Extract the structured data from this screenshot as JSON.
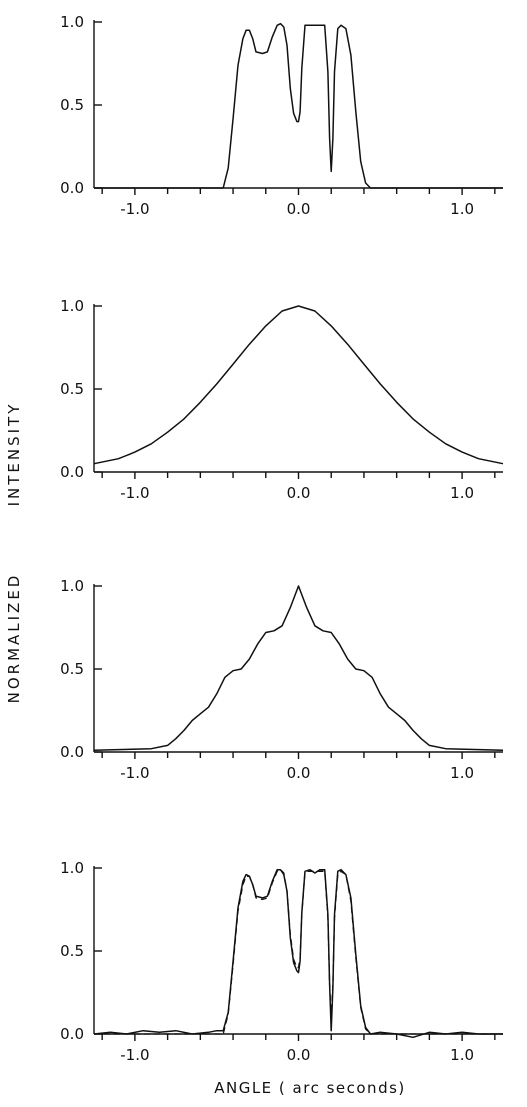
{
  "figure": {
    "ylabel_words": [
      "NORMALIZED",
      "INTENSITY"
    ],
    "xlabel": "ANGLE ( arc seconds)"
  },
  "chart_data": [
    {
      "type": "line",
      "xlim": [
        -1.25,
        1.25
      ],
      "ylim": [
        0.0,
        1.0
      ],
      "x_ticks": [
        -1.0,
        0.0,
        1.0
      ],
      "x_tick_labels": [
        "-1.0",
        "0.0",
        "1.0"
      ],
      "y_ticks": [
        0.0,
        0.5,
        1.0
      ],
      "y_tick_labels": [
        "0.0",
        "0.5",
        "1.0"
      ],
      "series": [
        {
          "style": "solid",
          "x": [
            -1.25,
            -0.46,
            -0.43,
            -0.4,
            -0.37,
            -0.34,
            -0.32,
            -0.3,
            -0.28,
            -0.26,
            -0.22,
            -0.19,
            -0.16,
            -0.13,
            -0.11,
            -0.09,
            -0.07,
            -0.05,
            -0.03,
            -0.01,
            0.0,
            0.01,
            0.02,
            0.04,
            0.07,
            0.1,
            0.13,
            0.16,
            0.18,
            0.19,
            0.2,
            0.21,
            0.22,
            0.24,
            0.26,
            0.29,
            0.32,
            0.35,
            0.38,
            0.41,
            0.44,
            0.46,
            1.25
          ],
          "y": [
            0.0,
            0.0,
            0.12,
            0.42,
            0.74,
            0.9,
            0.95,
            0.95,
            0.9,
            0.82,
            0.81,
            0.82,
            0.91,
            0.98,
            0.99,
            0.97,
            0.86,
            0.6,
            0.45,
            0.4,
            0.4,
            0.46,
            0.72,
            0.98,
            0.98,
            0.98,
            0.98,
            0.98,
            0.7,
            0.3,
            0.1,
            0.3,
            0.7,
            0.96,
            0.98,
            0.96,
            0.8,
            0.46,
            0.16,
            0.03,
            0.0,
            0.0,
            0.0
          ]
        }
      ]
    },
    {
      "type": "line",
      "xlim": [
        -1.25,
        1.25
      ],
      "ylim": [
        0.0,
        1.0
      ],
      "x_ticks": [
        -1.0,
        0.0,
        1.0
      ],
      "x_tick_labels": [
        "-1.0",
        "0.0",
        "1.0"
      ],
      "y_ticks": [
        0.0,
        0.5,
        1.0
      ],
      "y_tick_labels": [
        "0.0",
        "0.5",
        "1.0"
      ],
      "series": [
        {
          "style": "solid",
          "x": [
            -1.25,
            -1.1,
            -1.0,
            -0.9,
            -0.8,
            -0.7,
            -0.6,
            -0.5,
            -0.4,
            -0.3,
            -0.2,
            -0.1,
            0.0,
            0.1,
            0.2,
            0.3,
            0.4,
            0.5,
            0.6,
            0.7,
            0.8,
            0.9,
            1.0,
            1.1,
            1.25
          ],
          "y": [
            0.05,
            0.08,
            0.12,
            0.17,
            0.24,
            0.32,
            0.42,
            0.53,
            0.65,
            0.77,
            0.88,
            0.97,
            1.0,
            0.97,
            0.88,
            0.77,
            0.65,
            0.53,
            0.42,
            0.32,
            0.24,
            0.17,
            0.12,
            0.08,
            0.05
          ]
        }
      ]
    },
    {
      "type": "line",
      "xlim": [
        -1.25,
        1.25
      ],
      "ylim": [
        0.0,
        1.0
      ],
      "x_ticks": [
        -1.0,
        0.0,
        1.0
      ],
      "x_tick_labels": [
        "-1.0",
        "0.0",
        "1.0"
      ],
      "y_ticks": [
        0.0,
        0.5,
        1.0
      ],
      "y_tick_labels": [
        "0.0",
        "0.5",
        "1.0"
      ],
      "series": [
        {
          "style": "solid",
          "x": [
            -1.25,
            -0.9,
            -0.8,
            -0.75,
            -0.7,
            -0.65,
            -0.6,
            -0.55,
            -0.5,
            -0.45,
            -0.4,
            -0.35,
            -0.3,
            -0.25,
            -0.2,
            -0.15,
            -0.1,
            -0.05,
            0.0,
            0.05,
            0.1,
            0.15,
            0.2,
            0.25,
            0.3,
            0.35,
            0.4,
            0.45,
            0.5,
            0.55,
            0.6,
            0.65,
            0.7,
            0.75,
            0.8,
            0.9,
            1.25
          ],
          "y": [
            0.01,
            0.02,
            0.04,
            0.08,
            0.13,
            0.19,
            0.23,
            0.27,
            0.35,
            0.45,
            0.49,
            0.5,
            0.56,
            0.65,
            0.72,
            0.73,
            0.76,
            0.87,
            1.0,
            0.87,
            0.76,
            0.73,
            0.72,
            0.65,
            0.56,
            0.5,
            0.49,
            0.45,
            0.35,
            0.27,
            0.23,
            0.19,
            0.13,
            0.08,
            0.04,
            0.02,
            0.01
          ]
        }
      ]
    },
    {
      "type": "line",
      "xlim": [
        -1.25,
        1.25
      ],
      "ylim": [
        0.0,
        1.0
      ],
      "x_ticks": [
        -1.0,
        0.0,
        1.0
      ],
      "x_tick_labels": [
        "-1.0",
        "0.0",
        "1.0"
      ],
      "y_ticks": [
        0.0,
        0.5,
        1.0
      ],
      "y_tick_labels": [
        "0.0",
        "0.5",
        "1.0"
      ],
      "series": [
        {
          "style": "solid",
          "x": [
            -1.25,
            -1.15,
            -1.05,
            -0.95,
            -0.85,
            -0.75,
            -0.65,
            -0.55,
            -0.5,
            -0.46,
            -0.43,
            -0.4,
            -0.37,
            -0.34,
            -0.32,
            -0.3,
            -0.28,
            -0.26,
            -0.22,
            -0.19,
            -0.16,
            -0.13,
            -0.11,
            -0.09,
            -0.07,
            -0.05,
            -0.03,
            -0.01,
            0.0,
            0.01,
            0.02,
            0.04,
            0.07,
            0.1,
            0.13,
            0.16,
            0.18,
            0.19,
            0.2,
            0.21,
            0.22,
            0.24,
            0.26,
            0.29,
            0.32,
            0.35,
            0.38,
            0.41,
            0.44,
            0.5,
            0.6,
            0.7,
            0.8,
            0.9,
            1.0,
            1.1,
            1.25
          ],
          "y": [
            0.0,
            0.01,
            0.0,
            0.02,
            0.01,
            0.02,
            0.0,
            0.01,
            0.02,
            0.02,
            0.13,
            0.44,
            0.76,
            0.92,
            0.96,
            0.95,
            0.9,
            0.83,
            0.82,
            0.83,
            0.92,
            0.99,
            0.99,
            0.96,
            0.86,
            0.58,
            0.43,
            0.38,
            0.37,
            0.44,
            0.73,
            0.98,
            0.99,
            0.97,
            0.99,
            0.99,
            0.72,
            0.3,
            0.02,
            0.28,
            0.72,
            0.98,
            0.99,
            0.96,
            0.82,
            0.48,
            0.17,
            0.04,
            0.0,
            0.01,
            0.0,
            -0.02,
            0.01,
            0.0,
            0.01,
            0.0,
            0.0
          ]
        },
        {
          "style": "dashed",
          "x": [
            -1.25,
            -0.46,
            -0.43,
            -0.4,
            -0.37,
            -0.34,
            -0.32,
            -0.3,
            -0.28,
            -0.26,
            -0.22,
            -0.19,
            -0.16,
            -0.13,
            -0.11,
            -0.09,
            -0.07,
            -0.05,
            -0.03,
            -0.01,
            0.0,
            0.01,
            0.02,
            0.04,
            0.07,
            0.1,
            0.13,
            0.16,
            0.18,
            0.19,
            0.2,
            0.21,
            0.22,
            0.24,
            0.26,
            0.29,
            0.32,
            0.35,
            0.38,
            0.41,
            0.44,
            0.46,
            1.25
          ],
          "y": [
            0.0,
            0.0,
            0.12,
            0.42,
            0.74,
            0.9,
            0.95,
            0.95,
            0.9,
            0.82,
            0.81,
            0.82,
            0.91,
            0.98,
            0.99,
            0.97,
            0.86,
            0.6,
            0.45,
            0.4,
            0.4,
            0.46,
            0.72,
            0.98,
            0.98,
            0.98,
            0.98,
            0.98,
            0.7,
            0.3,
            0.1,
            0.3,
            0.7,
            0.96,
            0.98,
            0.96,
            0.8,
            0.46,
            0.16,
            0.03,
            0.0,
            0.0,
            0.0
          ]
        }
      ]
    }
  ]
}
